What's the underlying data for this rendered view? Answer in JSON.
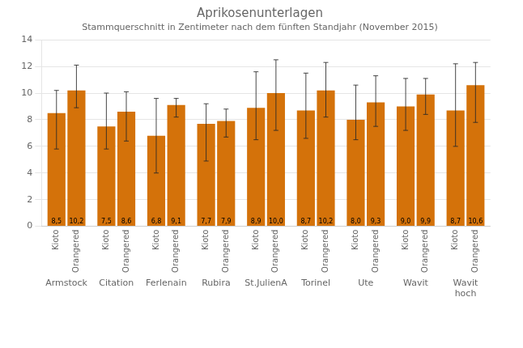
{
  "chart_data": {
    "type": "bar",
    "title": "Aprikosenunterlagen",
    "subtitle": "Stammquerschnitt in Zentimeter nach dem fünften Standjahr (November 2015)",
    "categories": [
      "Armstock",
      "Citation",
      "Ferlenain",
      "Rubira",
      "St.JulienA",
      "Torinel",
      "Ute",
      "Wavit",
      "Wavit\nhoch"
    ],
    "series": [
      {
        "name": "Kioto",
        "color": "#D4720A",
        "values": [
          8.5,
          7.5,
          6.8,
          7.7,
          8.9,
          8.7,
          8.0,
          9.0,
          8.7
        ],
        "value_labels": [
          "8,5",
          "7,5",
          "6,8",
          "7,7",
          "8,9",
          "8,7",
          "8,0",
          "9,0",
          "8,7"
        ],
        "error_up": [
          1.7,
          2.5,
          2.8,
          1.5,
          2.7,
          2.8,
          2.6,
          2.1,
          3.5
        ],
        "error_down": [
          2.7,
          1.7,
          2.8,
          2.8,
          2.4,
          2.1,
          1.5,
          1.8,
          2.7
        ]
      },
      {
        "name": "Orangered",
        "color": "#D4720A",
        "values": [
          10.2,
          8.6,
          9.1,
          7.9,
          10.0,
          10.2,
          9.3,
          9.9,
          10.6
        ],
        "value_labels": [
          "10,2",
          "8,6",
          "9,1",
          "7,9",
          "10,0",
          "10,2",
          "9,3",
          "9,9",
          "10,6"
        ],
        "error_up": [
          1.9,
          1.5,
          0.5,
          0.9,
          2.5,
          2.1,
          2.0,
          1.2,
          1.7
        ],
        "error_down": [
          1.3,
          2.2,
          0.9,
          1.2,
          2.8,
          2.0,
          1.8,
          1.5,
          2.8
        ]
      }
    ],
    "ylim": [
      0,
      14
    ],
    "yticks": [
      0,
      2,
      4,
      6,
      8,
      10,
      12,
      14
    ],
    "grid": true,
    "legend": false,
    "data_labels": true
  }
}
